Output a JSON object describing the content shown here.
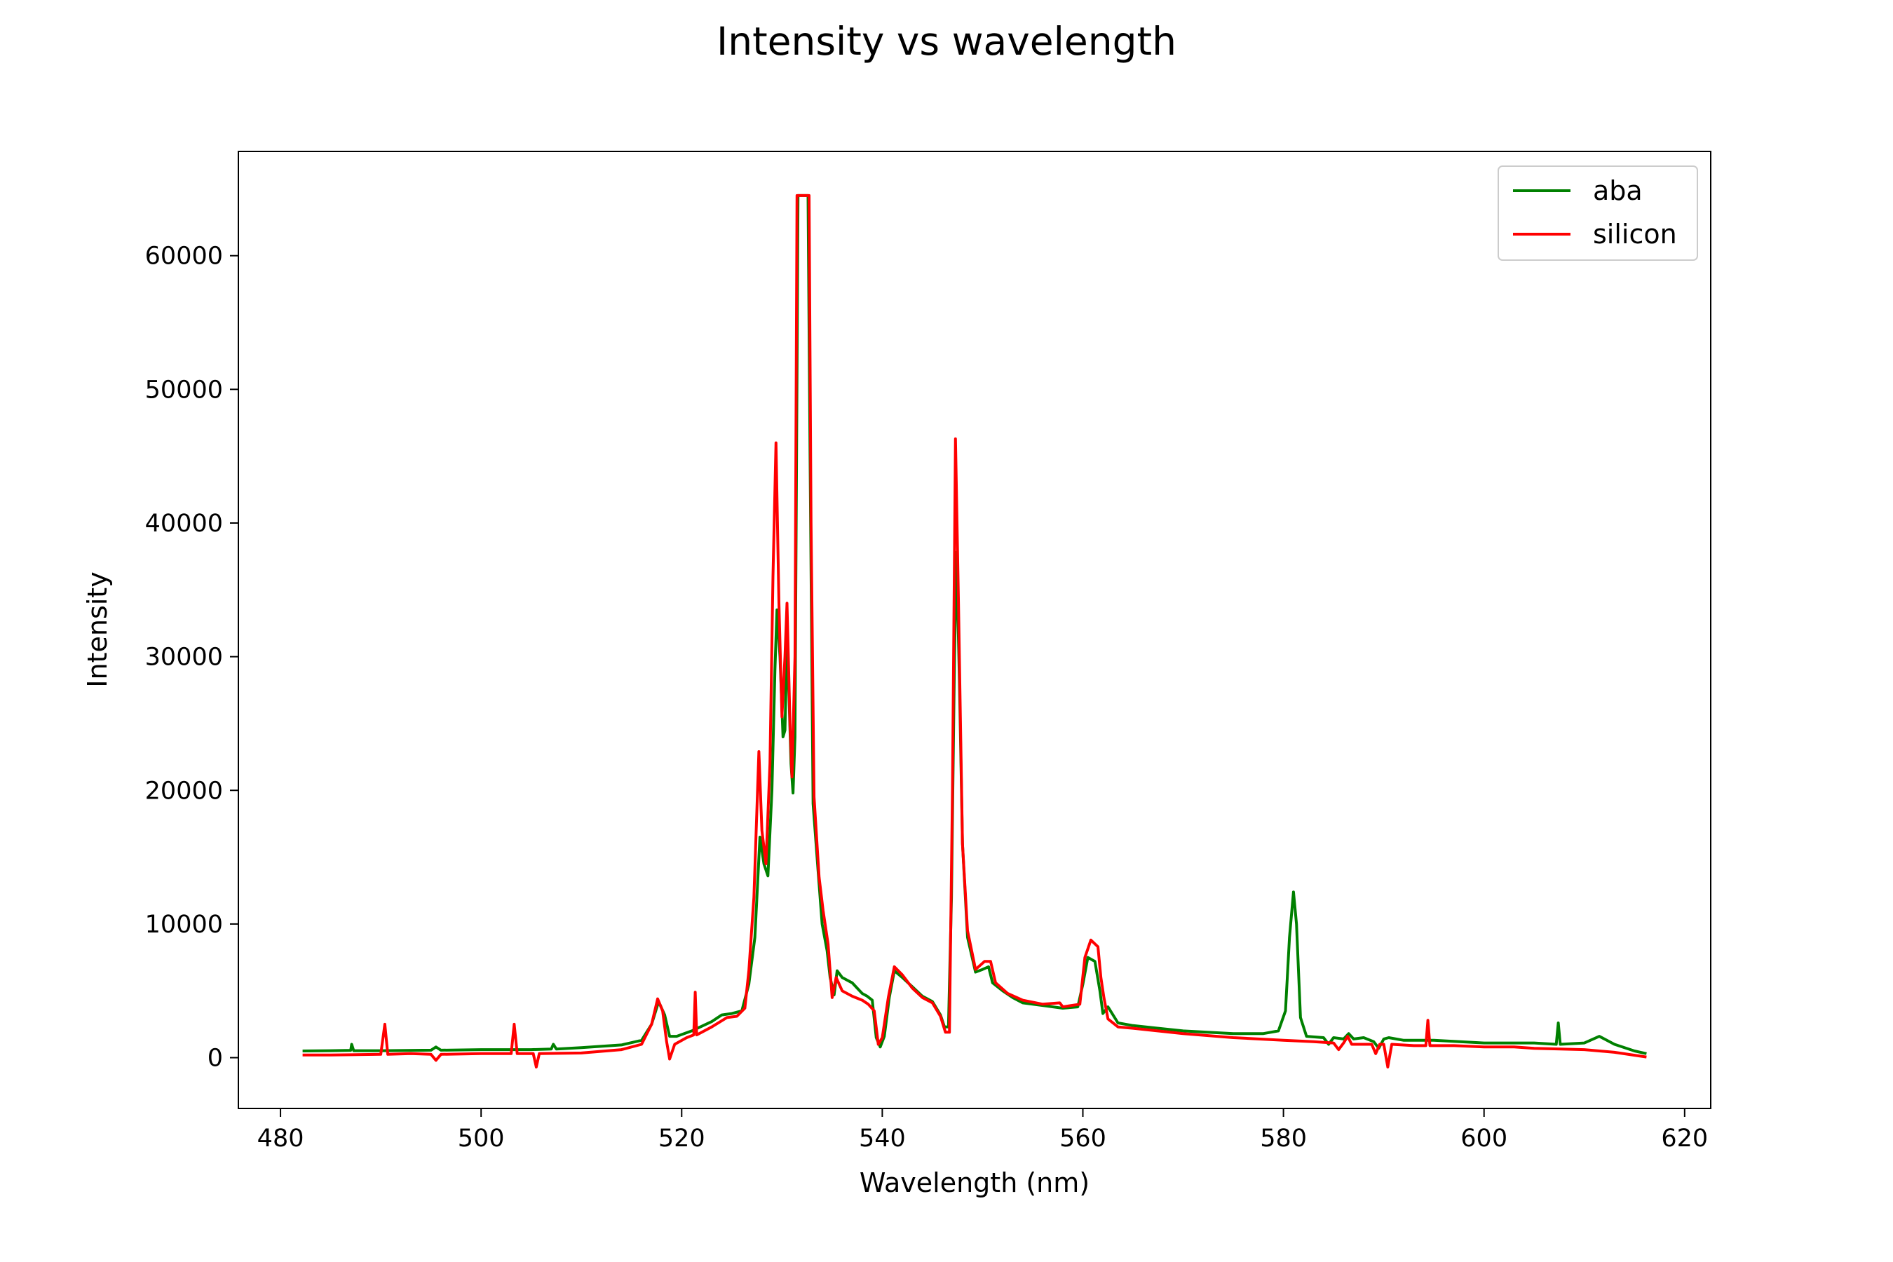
{
  "chart_data": {
    "type": "line",
    "title": "Intensity vs wavelength",
    "xlabel": "Wavelength (nm)",
    "ylabel": "Intensity",
    "xlim": [
      475.8,
      622.6
    ],
    "ylim": [
      -3800,
      67800
    ],
    "xticks": [
      480,
      500,
      520,
      540,
      560,
      580,
      600,
      620
    ],
    "yticks": [
      0,
      10000,
      20000,
      30000,
      40000,
      50000,
      60000
    ],
    "xtick_labels": [
      "480",
      "500",
      "520",
      "540",
      "560",
      "580",
      "600",
      "620"
    ],
    "ytick_labels": [
      "0",
      "10000",
      "20000",
      "30000",
      "40000",
      "50000",
      "60000"
    ],
    "grid": false,
    "legend_position": "top-right",
    "series": [
      {
        "name": "aba",
        "color": "#008000",
        "points": [
          [
            482.2,
            500
          ],
          [
            485,
            520
          ],
          [
            487,
            550
          ],
          [
            487.1,
            1000
          ],
          [
            487.3,
            520
          ],
          [
            490,
            520
          ],
          [
            495,
            560
          ],
          [
            495.5,
            800
          ],
          [
            496,
            560
          ],
          [
            500,
            600
          ],
          [
            505,
            600
          ],
          [
            507,
            650
          ],
          [
            507.2,
            1000
          ],
          [
            507.5,
            650
          ],
          [
            510,
            750
          ],
          [
            514,
            950
          ],
          [
            516,
            1300
          ],
          [
            517,
            2500
          ],
          [
            517.7,
            4200
          ],
          [
            518.3,
            3200
          ],
          [
            518.8,
            1600
          ],
          [
            519.5,
            1600
          ],
          [
            521,
            2000
          ],
          [
            523,
            2700
          ],
          [
            524,
            3200
          ],
          [
            525,
            3300
          ],
          [
            526,
            3500
          ],
          [
            526.7,
            5500
          ],
          [
            527.3,
            9000
          ],
          [
            527.8,
            16500
          ],
          [
            528.2,
            14500
          ],
          [
            528.6,
            13600
          ],
          [
            529,
            20000
          ],
          [
            529.3,
            29000
          ],
          [
            529.5,
            33500
          ],
          [
            529.8,
            30000
          ],
          [
            530.1,
            24000
          ],
          [
            530.3,
            24500
          ],
          [
            530.5,
            31000
          ],
          [
            530.7,
            27000
          ],
          [
            530.9,
            22000
          ],
          [
            531.1,
            19800
          ],
          [
            531.3,
            24000
          ],
          [
            531.6,
            64500
          ],
          [
            532.6,
            64500
          ],
          [
            532.8,
            45000
          ],
          [
            533.1,
            19000
          ],
          [
            533.6,
            14000
          ],
          [
            534,
            10000
          ],
          [
            534.5,
            8000
          ],
          [
            534.8,
            6000
          ],
          [
            535.2,
            4700
          ],
          [
            535.5,
            6500
          ],
          [
            536,
            6000
          ],
          [
            536.5,
            5800
          ],
          [
            537,
            5600
          ],
          [
            537.5,
            5200
          ],
          [
            538,
            4800
          ],
          [
            538.5,
            4600
          ],
          [
            539,
            4300
          ],
          [
            539.4,
            1500
          ],
          [
            539.8,
            800
          ],
          [
            540.2,
            1600
          ],
          [
            540.7,
            4500
          ],
          [
            541.2,
            6500
          ],
          [
            542,
            6000
          ],
          [
            543,
            5300
          ],
          [
            544,
            4600
          ],
          [
            545,
            4200
          ],
          [
            545.8,
            3200
          ],
          [
            546.2,
            2300
          ],
          [
            546.6,
            2300
          ],
          [
            546.9,
            12000
          ],
          [
            547.2,
            30000
          ],
          [
            547.4,
            37800
          ],
          [
            547.7,
            28000
          ],
          [
            548,
            16000
          ],
          [
            548.5,
            9000
          ],
          [
            549.3,
            6400
          ],
          [
            550,
            6600
          ],
          [
            550.6,
            6800
          ],
          [
            551,
            5600
          ],
          [
            552,
            5000
          ],
          [
            553,
            4500
          ],
          [
            554,
            4100
          ],
          [
            556,
            3900
          ],
          [
            558,
            3700
          ],
          [
            559.5,
            3800
          ],
          [
            560,
            5500
          ],
          [
            560.5,
            7500
          ],
          [
            561.2,
            7200
          ],
          [
            561.7,
            5000
          ],
          [
            562,
            3300
          ],
          [
            562.5,
            3800
          ],
          [
            563.5,
            2600
          ],
          [
            565,
            2400
          ],
          [
            570,
            2000
          ],
          [
            575,
            1800
          ],
          [
            578,
            1800
          ],
          [
            579.5,
            2000
          ],
          [
            580.2,
            3500
          ],
          [
            580.6,
            9000
          ],
          [
            581,
            12400
          ],
          [
            581.3,
            10000
          ],
          [
            581.7,
            3000
          ],
          [
            582.3,
            1600
          ],
          [
            584,
            1500
          ],
          [
            584.5,
            1000
          ],
          [
            585,
            1500
          ],
          [
            586,
            1400
          ],
          [
            586.5,
            1800
          ],
          [
            587,
            1400
          ],
          [
            588,
            1500
          ],
          [
            589,
            1200
          ],
          [
            589.5,
            700
          ],
          [
            590,
            1400
          ],
          [
            590.5,
            1500
          ],
          [
            592,
            1300
          ],
          [
            595,
            1300
          ],
          [
            600,
            1100
          ],
          [
            605,
            1100
          ],
          [
            607.2,
            1000
          ],
          [
            607.4,
            2600
          ],
          [
            607.6,
            1000
          ],
          [
            610,
            1100
          ],
          [
            611.5,
            1600
          ],
          [
            613,
            1000
          ],
          [
            615,
            500
          ],
          [
            616.2,
            300
          ]
        ]
      },
      {
        "name": "silicon",
        "color": "#ff0000",
        "points": [
          [
            482.2,
            200
          ],
          [
            485,
            200
          ],
          [
            490,
            250
          ],
          [
            490.4,
            2500
          ],
          [
            490.7,
            250
          ],
          [
            493,
            300
          ],
          [
            495,
            250
          ],
          [
            495.5,
            -200
          ],
          [
            496,
            250
          ],
          [
            500,
            300
          ],
          [
            503,
            300
          ],
          [
            503.3,
            2500
          ],
          [
            503.6,
            300
          ],
          [
            505.2,
            300
          ],
          [
            505.5,
            -700
          ],
          [
            505.8,
            300
          ],
          [
            510,
            350
          ],
          [
            514,
            600
          ],
          [
            516,
            1000
          ],
          [
            517,
            2500
          ],
          [
            517.6,
            4400
          ],
          [
            518.1,
            3500
          ],
          [
            518.5,
            1200
          ],
          [
            518.8,
            -100
          ],
          [
            519.3,
            1000
          ],
          [
            520.5,
            1500
          ],
          [
            521.2,
            1700
          ],
          [
            521.35,
            4900
          ],
          [
            521.5,
            1700
          ],
          [
            523,
            2300
          ],
          [
            524.5,
            3000
          ],
          [
            525.5,
            3100
          ],
          [
            526.3,
            3700
          ],
          [
            526.7,
            6500
          ],
          [
            527.2,
            12000
          ],
          [
            527.7,
            22900
          ],
          [
            528,
            17000
          ],
          [
            528.4,
            14500
          ],
          [
            528.8,
            22000
          ],
          [
            529.1,
            36000
          ],
          [
            529.4,
            46000
          ],
          [
            529.7,
            34000
          ],
          [
            530,
            25500
          ],
          [
            530.3,
            30000
          ],
          [
            530.5,
            34000
          ],
          [
            530.8,
            25000
          ],
          [
            531,
            21000
          ],
          [
            531.3,
            30000
          ],
          [
            531.5,
            64500
          ],
          [
            532.7,
            64500
          ],
          [
            532.9,
            40000
          ],
          [
            533.2,
            19500
          ],
          [
            533.7,
            13500
          ],
          [
            534.1,
            11000
          ],
          [
            534.6,
            8500
          ],
          [
            535,
            4500
          ],
          [
            535.4,
            6000
          ],
          [
            536,
            5000
          ],
          [
            537,
            4600
          ],
          [
            538,
            4300
          ],
          [
            538.6,
            4000
          ],
          [
            539.2,
            3500
          ],
          [
            539.6,
            1000
          ],
          [
            540,
            1500
          ],
          [
            540.6,
            4500
          ],
          [
            541.2,
            6800
          ],
          [
            542,
            6200
          ],
          [
            543,
            5200
          ],
          [
            544,
            4500
          ],
          [
            545,
            4100
          ],
          [
            545.8,
            3100
          ],
          [
            546.3,
            1900
          ],
          [
            546.7,
            1900
          ],
          [
            547,
            20000
          ],
          [
            547.3,
            46300
          ],
          [
            547.6,
            34000
          ],
          [
            548,
            16000
          ],
          [
            548.5,
            9500
          ],
          [
            549.3,
            6600
          ],
          [
            550.2,
            7200
          ],
          [
            550.8,
            7200
          ],
          [
            551.3,
            5600
          ],
          [
            552.5,
            4800
          ],
          [
            554,
            4300
          ],
          [
            556,
            4000
          ],
          [
            557.7,
            4100
          ],
          [
            558,
            3800
          ],
          [
            559.7,
            4000
          ],
          [
            560.2,
            7500
          ],
          [
            560.8,
            8800
          ],
          [
            561.5,
            8300
          ],
          [
            561.8,
            6000
          ],
          [
            562.1,
            4500
          ],
          [
            562.5,
            2900
          ],
          [
            563.5,
            2300
          ],
          [
            565,
            2200
          ],
          [
            570,
            1800
          ],
          [
            575,
            1500
          ],
          [
            580,
            1300
          ],
          [
            583,
            1200
          ],
          [
            585,
            1100
          ],
          [
            585.5,
            600
          ],
          [
            586,
            1100
          ],
          [
            586.4,
            1600
          ],
          [
            586.8,
            1000
          ],
          [
            588,
            1000
          ],
          [
            588.8,
            1000
          ],
          [
            589.2,
            300
          ],
          [
            589.6,
            1000
          ],
          [
            590,
            1000
          ],
          [
            590.4,
            -700
          ],
          [
            590.8,
            1000
          ],
          [
            593,
            900
          ],
          [
            594.2,
            900
          ],
          [
            594.4,
            2800
          ],
          [
            594.6,
            900
          ],
          [
            597,
            900
          ],
          [
            600,
            800
          ],
          [
            603,
            800
          ],
          [
            605,
            700
          ],
          [
            610,
            600
          ],
          [
            613,
            400
          ],
          [
            616.2,
            50
          ]
        ]
      }
    ]
  }
}
